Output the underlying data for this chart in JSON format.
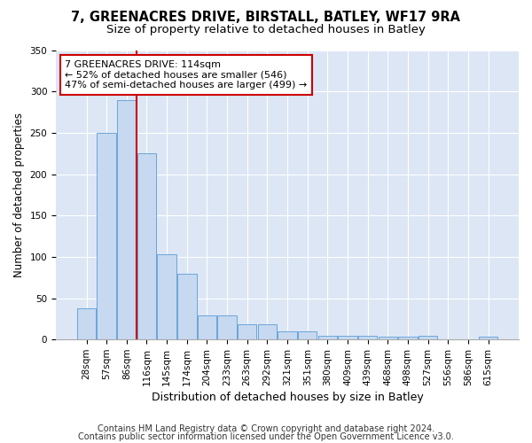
{
  "title1": "7, GREENACRES DRIVE, BIRSTALL, BATLEY, WF17 9RA",
  "title2": "Size of property relative to detached houses in Batley",
  "xlabel": "Distribution of detached houses by size in Batley",
  "ylabel": "Number of detached properties",
  "bar_values": [
    38,
    250,
    290,
    225,
    103,
    79,
    29,
    29,
    18,
    18,
    10,
    10,
    5,
    5,
    4,
    3,
    3,
    4,
    0,
    0,
    3
  ],
  "categories": [
    "28sqm",
    "57sqm",
    "86sqm",
    "116sqm",
    "145sqm",
    "174sqm",
    "204sqm",
    "233sqm",
    "263sqm",
    "292sqm",
    "321sqm",
    "351sqm",
    "380sqm",
    "409sqm",
    "439sqm",
    "468sqm",
    "498sqm",
    "527sqm",
    "556sqm",
    "586sqm",
    "615sqm"
  ],
  "bar_color": "#c6d9f0",
  "bar_edge_color": "#5b9bd5",
  "property_line_x": 2.5,
  "annotation_line1": "7 GREENACRES DRIVE: 114sqm",
  "annotation_line2": "← 52% of detached houses are smaller (546)",
  "annotation_line3": "47% of semi-detached houses are larger (499) →",
  "annotation_box_color": "#ffffff",
  "annotation_box_edge": "#cc0000",
  "red_line_color": "#cc0000",
  "ylim": [
    0,
    350
  ],
  "yticks": [
    0,
    50,
    100,
    150,
    200,
    250,
    300,
    350
  ],
  "background_color": "#dce6f5",
  "grid_color": "#ffffff",
  "fig_background": "#ffffff",
  "footer1": "Contains HM Land Registry data © Crown copyright and database right 2024.",
  "footer2": "Contains public sector information licensed under the Open Government Licence v3.0.",
  "title1_fontsize": 10.5,
  "title2_fontsize": 9.5,
  "xlabel_fontsize": 9,
  "ylabel_fontsize": 8.5,
  "tick_fontsize": 7.5,
  "annotation_fontsize": 8,
  "footer_fontsize": 7
}
